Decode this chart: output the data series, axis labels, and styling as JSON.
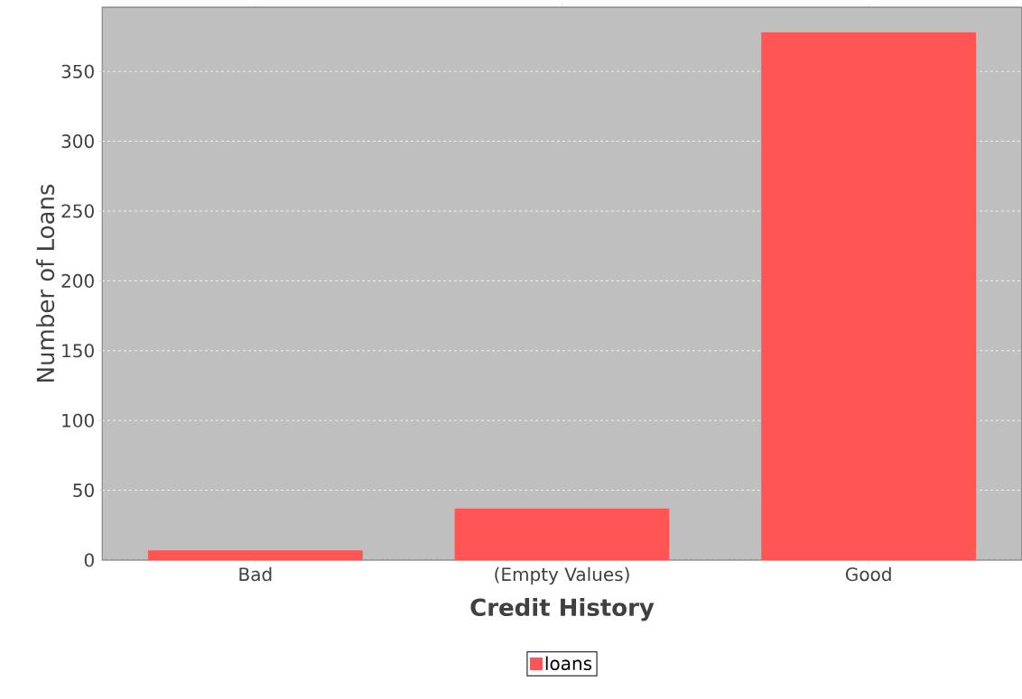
{
  "chart_data": {
    "type": "bar",
    "xlabel": "Credit History",
    "ylabel": "Number of Loans",
    "categories": [
      "Bad",
      "(Empty Values)",
      "Good"
    ],
    "series": [
      {
        "name": "loans",
        "color": "#ff5555",
        "values": [
          7,
          37,
          378
        ]
      }
    ],
    "ylim": [
      0,
      396
    ],
    "yticks": [
      0,
      50,
      100,
      150,
      200,
      250,
      300,
      350
    ],
    "grid": "y",
    "legend": "bottom"
  }
}
